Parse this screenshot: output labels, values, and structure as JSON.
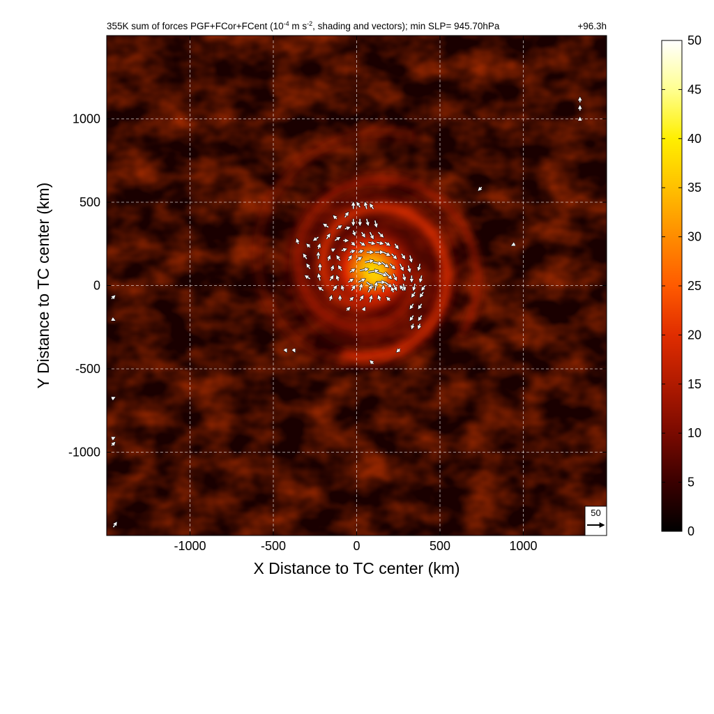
{
  "chart_data": {
    "type": "heatmap",
    "title": "355K sum of forces PGF+FCor+FCent (10",
    "title_sup1": "-4",
    "title_mid": " m s",
    "title_sup2": "-2",
    "title_tail": ", shading and vectors); min SLP= 945.70hPa",
    "forecast_time": "+96.3h",
    "xlabel": "X Distance to TC center (km)",
    "ylabel": "Y Distance to TC center (km)",
    "xlim": [
      -1500,
      1500
    ],
    "ylim": [
      -1500,
      1500
    ],
    "x_ticks": [
      -1000,
      -500,
      0,
      500,
      1000
    ],
    "y_ticks": [
      -1000,
      -500,
      0,
      500,
      1000
    ],
    "x_tick_labels": [
      "-1000",
      "-500",
      "0",
      "500",
      "1000"
    ],
    "y_tick_labels": [
      "-1000",
      "-500",
      "0",
      "500",
      "1000"
    ],
    "grid": true,
    "colorbar": {
      "min": 0,
      "max": 50,
      "ticks": [
        0,
        5,
        10,
        15,
        20,
        25,
        30,
        35,
        40,
        45,
        50
      ],
      "tick_labels": [
        "0",
        "5",
        "10",
        "15",
        "20",
        "25",
        "30",
        "35",
        "40",
        "45",
        "50"
      ],
      "colors": [
        "#000000",
        "#3a0000",
        "#7a0a00",
        "#b01a00",
        "#e02d00",
        "#ff5a00",
        "#ff8c00",
        "#ffc000",
        "#ffef00",
        "#ffff90",
        "#ffffff"
      ]
    },
    "reference_vector": {
      "label": "50",
      "magnitude": 50
    },
    "field_description_peak": {
      "center_x_km": 90,
      "center_y_km": 100,
      "peak_value": 35
    },
    "vectors": [
      {
        "x": -20,
        "y": 460,
        "u": 0,
        "v": 20
      },
      {
        "x": 20,
        "y": 470,
        "u": -10,
        "v": 15
      },
      {
        "x": 60,
        "y": 460,
        "u": -5,
        "v": 20
      },
      {
        "x": 100,
        "y": 460,
        "u": -10,
        "v": 15
      },
      {
        "x": -120,
        "y": 400,
        "u": -10,
        "v": 10
      },
      {
        "x": -70,
        "y": 410,
        "u": 10,
        "v": 15
      },
      {
        "x": -20,
        "y": 400,
        "u": 0,
        "v": -20
      },
      {
        "x": 20,
        "y": 400,
        "u": 0,
        "v": -20
      },
      {
        "x": 60,
        "y": 400,
        "u": 5,
        "v": -20
      },
      {
        "x": 110,
        "y": 390,
        "u": 5,
        "v": -20
      },
      {
        "x": -170,
        "y": 350,
        "u": -15,
        "v": 10
      },
      {
        "x": -120,
        "y": 340,
        "u": 15,
        "v": 10
      },
      {
        "x": -70,
        "y": 340,
        "u": 15,
        "v": 5
      },
      {
        "x": -20,
        "y": 330,
        "u": 5,
        "v": -15
      },
      {
        "x": 30,
        "y": 320,
        "u": 10,
        "v": -15
      },
      {
        "x": 80,
        "y": 320,
        "u": 10,
        "v": -20
      },
      {
        "x": 130,
        "y": 320,
        "u": 15,
        "v": -15
      },
      {
        "x": -230,
        "y": 290,
        "u": -15,
        "v": -10
      },
      {
        "x": -180,
        "y": 280,
        "u": 10,
        "v": 15
      },
      {
        "x": -130,
        "y": 270,
        "u": 15,
        "v": 10
      },
      {
        "x": -80,
        "y": 270,
        "u": 15,
        "v": 0
      },
      {
        "x": -30,
        "y": 260,
        "u": 10,
        "v": -10
      },
      {
        "x": 20,
        "y": 260,
        "u": 15,
        "v": -10
      },
      {
        "x": 70,
        "y": 260,
        "u": 20,
        "v": -5
      },
      {
        "x": 120,
        "y": 260,
        "u": 20,
        "v": -5
      },
      {
        "x": 170,
        "y": 260,
        "u": 15,
        "v": -10
      },
      {
        "x": 230,
        "y": 250,
        "u": 10,
        "v": -15
      },
      {
        "x": -350,
        "y": 250,
        "u": -5,
        "v": 15
      },
      {
        "x": -280,
        "y": 230,
        "u": -10,
        "v": 10
      },
      {
        "x": -230,
        "y": 220,
        "u": 5,
        "v": 15
      },
      {
        "x": -150,
        "y": 210,
        "u": 10,
        "v": 5
      },
      {
        "x": -90,
        "y": 210,
        "u": 15,
        "v": 5
      },
      {
        "x": -40,
        "y": 200,
        "u": 15,
        "v": 5
      },
      {
        "x": 10,
        "y": 200,
        "u": 15,
        "v": 5
      },
      {
        "x": 60,
        "y": 200,
        "u": 20,
        "v": 0
      },
      {
        "x": 110,
        "y": 200,
        "u": 25,
        "v": 0
      },
      {
        "x": 160,
        "y": 200,
        "u": 20,
        "v": -10
      },
      {
        "x": 210,
        "y": 190,
        "u": 15,
        "v": -15
      },
      {
        "x": 270,
        "y": 190,
        "u": 10,
        "v": -15
      },
      {
        "x": 320,
        "y": 180,
        "u": 5,
        "v": -20
      },
      {
        "x": -300,
        "y": 160,
        "u": -10,
        "v": 15
      },
      {
        "x": -230,
        "y": 160,
        "u": 0,
        "v": 20
      },
      {
        "x": -170,
        "y": 150,
        "u": 5,
        "v": 15
      },
      {
        "x": -100,
        "y": 150,
        "u": -10,
        "v": 15
      },
      {
        "x": -50,
        "y": 150,
        "u": 10,
        "v": 15
      },
      {
        "x": 0,
        "y": 150,
        "u": 15,
        "v": 10
      },
      {
        "x": 50,
        "y": 140,
        "u": 25,
        "v": 5
      },
      {
        "x": 100,
        "y": 140,
        "u": 25,
        "v": -5
      },
      {
        "x": 150,
        "y": 140,
        "u": 20,
        "v": -15
      },
      {
        "x": 200,
        "y": 130,
        "u": 15,
        "v": -15
      },
      {
        "x": 260,
        "y": 130,
        "u": 10,
        "v": -20
      },
      {
        "x": 310,
        "y": 120,
        "u": 5,
        "v": -20
      },
      {
        "x": 380,
        "y": 130,
        "u": -5,
        "v": -20
      },
      {
        "x": -280,
        "y": 100,
        "u": -10,
        "v": 15
      },
      {
        "x": -220,
        "y": 90,
        "u": 0,
        "v": 20
      },
      {
        "x": -150,
        "y": 90,
        "u": 5,
        "v": 15
      },
      {
        "x": -90,
        "y": 90,
        "u": -10,
        "v": 15
      },
      {
        "x": -40,
        "y": 80,
        "u": 15,
        "v": 10
      },
      {
        "x": 20,
        "y": 90,
        "u": 25,
        "v": 5
      },
      {
        "x": 70,
        "y": 80,
        "u": 30,
        "v": 5
      },
      {
        "x": 120,
        "y": 80,
        "u": 30,
        "v": -10
      },
      {
        "x": 170,
        "y": 80,
        "u": 20,
        "v": -20
      },
      {
        "x": 220,
        "y": 70,
        "u": 10,
        "v": -20
      },
      {
        "x": 280,
        "y": 70,
        "u": 5,
        "v": -20
      },
      {
        "x": 330,
        "y": 60,
        "u": 0,
        "v": -20
      },
      {
        "x": 390,
        "y": 60,
        "u": -5,
        "v": -20
      },
      {
        "x": -280,
        "y": 40,
        "u": -15,
        "v": 10
      },
      {
        "x": -220,
        "y": 30,
        "u": -5,
        "v": 20
      },
      {
        "x": -160,
        "y": 30,
        "u": 10,
        "v": 15
      },
      {
        "x": -110,
        "y": 30,
        "u": -5,
        "v": 15
      },
      {
        "x": -50,
        "y": 20,
        "u": 15,
        "v": 10
      },
      {
        "x": 10,
        "y": 20,
        "u": 20,
        "v": 10
      },
      {
        "x": 60,
        "y": 20,
        "u": 20,
        "v": -15
      },
      {
        "x": 120,
        "y": 20,
        "u": 25,
        "v": 0
      },
      {
        "x": 170,
        "y": 20,
        "u": 20,
        "v": -15
      },
      {
        "x": 220,
        "y": 10,
        "u": 10,
        "v": -20
      },
      {
        "x": 280,
        "y": 10,
        "u": 5,
        "v": -20
      },
      {
        "x": 350,
        "y": 10,
        "u": -5,
        "v": -20
      },
      {
        "x": 410,
        "y": 0,
        "u": -10,
        "v": -15
      },
      {
        "x": -200,
        "y": -30,
        "u": -15,
        "v": 10
      },
      {
        "x": -140,
        "y": -30,
        "u": 10,
        "v": 15
      },
      {
        "x": -80,
        "y": -30,
        "u": -5,
        "v": 15
      },
      {
        "x": -30,
        "y": -30,
        "u": 10,
        "v": 15
      },
      {
        "x": 20,
        "y": -30,
        "u": 5,
        "v": 20
      },
      {
        "x": 70,
        "y": -40,
        "u": 10,
        "v": 20
      },
      {
        "x": 110,
        "y": -30,
        "u": 5,
        "v": 25
      },
      {
        "x": 160,
        "y": -40,
        "u": 0,
        "v": 20
      },
      {
        "x": 220,
        "y": -40,
        "u": -5,
        "v": 15
      },
      {
        "x": 280,
        "y": -30,
        "u": -10,
        "v": 15
      },
      {
        "x": 350,
        "y": -40,
        "u": -10,
        "v": -15
      },
      {
        "x": 400,
        "y": -40,
        "u": -10,
        "v": -15
      },
      {
        "x": -160,
        "y": -90,
        "u": 5,
        "v": 15
      },
      {
        "x": -100,
        "y": -90,
        "u": 0,
        "v": 15
      },
      {
        "x": -40,
        "y": -90,
        "u": 10,
        "v": 10
      },
      {
        "x": 20,
        "y": -90,
        "u": 10,
        "v": 15
      },
      {
        "x": 80,
        "y": -100,
        "u": 5,
        "v": 20
      },
      {
        "x": 140,
        "y": -90,
        "u": -5,
        "v": 15
      },
      {
        "x": 200,
        "y": -90,
        "u": -10,
        "v": 10
      },
      {
        "x": 340,
        "y": -110,
        "u": -10,
        "v": -15
      },
      {
        "x": 390,
        "y": -110,
        "u": -10,
        "v": -15
      },
      {
        "x": -60,
        "y": -150,
        "u": 10,
        "v": 10
      },
      {
        "x": 40,
        "y": -150,
        "u": 5,
        "v": 10
      },
      {
        "x": 340,
        "y": -180,
        "u": -10,
        "v": -15
      },
      {
        "x": 390,
        "y": -180,
        "u": -10,
        "v": -15
      },
      {
        "x": 340,
        "y": -230,
        "u": -5,
        "v": -15
      },
      {
        "x": 380,
        "y": -230,
        "u": -5,
        "v": -15
      },
      {
        "x": 260,
        "y": -380,
        "u": -10,
        "v": -10
      },
      {
        "x": -430,
        "y": -380,
        "u": 5,
        "v": -10
      },
      {
        "x": -380,
        "y": -380,
        "u": 5,
        "v": -10
      },
      {
        "x": 100,
        "y": -470,
        "u": -10,
        "v": 10
      },
      {
        "x": 750,
        "y": 590,
        "u": -10,
        "v": -10
      },
      {
        "x": 950,
        "y": 250,
        "u": -10,
        "v": -5
      },
      {
        "x": 1340,
        "y": 1100,
        "u": 0,
        "v": 15
      },
      {
        "x": 1340,
        "y": 1050,
        "u": 0,
        "v": 15
      },
      {
        "x": 1340,
        "y": 990,
        "u": 0,
        "v": 10
      },
      {
        "x": -1470,
        "y": -80,
        "u": 10,
        "v": 10
      },
      {
        "x": -1470,
        "y": -200,
        "u": 10,
        "v": -5
      },
      {
        "x": -1470,
        "y": -680,
        "u": 10,
        "v": 5
      },
      {
        "x": -1470,
        "y": -920,
        "u": 10,
        "v": 5
      },
      {
        "x": -1470,
        "y": -960,
        "u": 10,
        "v": 10
      },
      {
        "x": -1460,
        "y": -1450,
        "u": 10,
        "v": 15
      }
    ]
  }
}
